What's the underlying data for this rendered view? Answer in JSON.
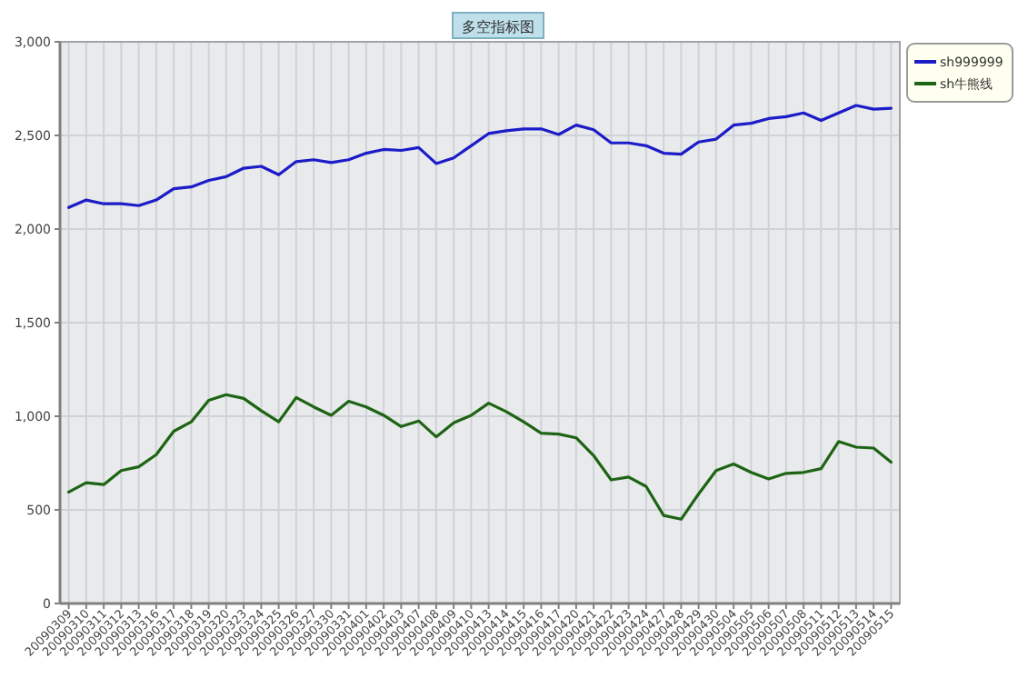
{
  "chart_data": {
    "type": "line",
    "title": "多空指标图",
    "categories": [
      "20090309",
      "20090310",
      "20090311",
      "20090312",
      "20090313",
      "20090316",
      "20090317",
      "20090318",
      "20090319",
      "20090320",
      "20090323",
      "20090324",
      "20090325",
      "20090326",
      "20090327",
      "20090330",
      "20090331",
      "20090401",
      "20090402",
      "20090403",
      "20090407",
      "20090408",
      "20090409",
      "20090410",
      "20090413",
      "20090414",
      "20090415",
      "20090416",
      "20090417",
      "20090420",
      "20090421",
      "20090422",
      "20090423",
      "20090424",
      "20090427",
      "20090428",
      "20090429",
      "20090430",
      "20090504",
      "20090505",
      "20090506",
      "20090507",
      "20090508",
      "20090511",
      "20090512",
      "20090513",
      "20090514",
      "20090515"
    ],
    "series": [
      {
        "name": "sh999999",
        "color": "#1c1cc8",
        "values": [
          2115,
          2155,
          2135,
          2135,
          2125,
          2155,
          2215,
          2225,
          2260,
          2280,
          2325,
          2335,
          2290,
          2360,
          2370,
          2355,
          2370,
          2405,
          2425,
          2420,
          2435,
          2350,
          2380,
          2445,
          2510,
          2525,
          2535,
          2535,
          2505,
          2555,
          2530,
          2460,
          2460,
          2445,
          2405,
          2400,
          2465,
          2480,
          2555,
          2565,
          2590,
          2600,
          2620,
          2580,
          2620,
          2660,
          2640,
          2645
        ]
      },
      {
        "name": "sh牛熊线",
        "color": "#1e6414",
        "values": [
          595,
          645,
          635,
          710,
          730,
          795,
          920,
          970,
          1085,
          1115,
          1095,
          1030,
          970,
          1100,
          1050,
          1005,
          1080,
          1050,
          1005,
          945,
          975,
          890,
          965,
          1005,
          1070,
          1025,
          970,
          910,
          905,
          885,
          790,
          660,
          675,
          625,
          470,
          450,
          585,
          710,
          745,
          700,
          665,
          695,
          700,
          720,
          865,
          835,
          830,
          755
        ]
      }
    ],
    "ylim": [
      0,
      3000
    ],
    "yticks": [
      {
        "value": 0,
        "label": "0"
      },
      {
        "value": 500,
        "label": "500"
      },
      {
        "value": 1000,
        "label": "1,000"
      },
      {
        "value": 1500,
        "label": "1,500"
      },
      {
        "value": 2000,
        "label": "2,000"
      },
      {
        "value": 2500,
        "label": "2,500"
      },
      {
        "value": 3000,
        "label": "3,000"
      }
    ],
    "grid": true,
    "legend": "top right",
    "marker": "none",
    "line_style": "solid"
  }
}
